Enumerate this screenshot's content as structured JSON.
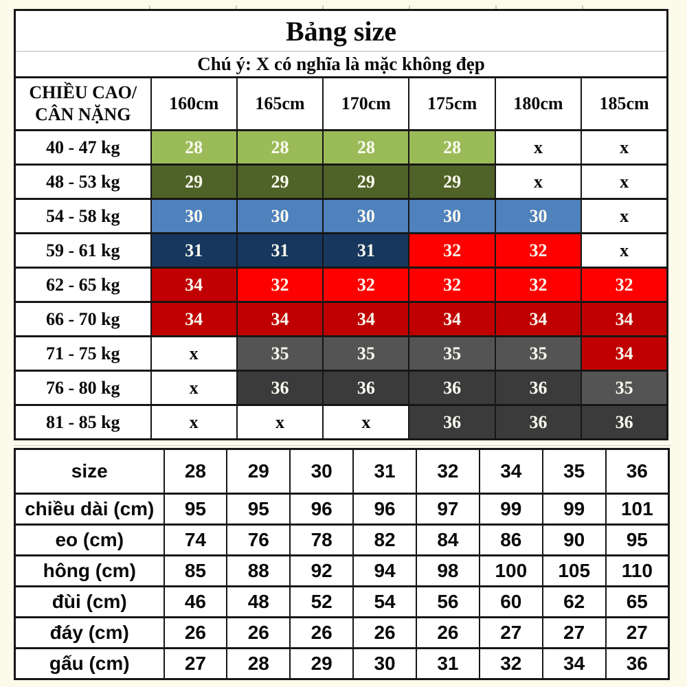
{
  "palette": {
    "page_background": "#FCFAEA",
    "border": "#161616",
    "separator_gray": "#B9B9B9",
    "text_dark": "#0A0A0A",
    "text_on_color": "#FBFAF0",
    "light_green": "#9BBB59",
    "dark_olive": "#4F6228",
    "blue": "#4F81BD",
    "navy": "#17375E",
    "red": "#FE0000",
    "dark_red": "#C00000",
    "gray_medium": "#545454",
    "gray_dark": "#3B3B3B"
  },
  "size_chart": {
    "title": "Bảng size",
    "note": "Chú ý: X có nghĩa là mặc không đẹp",
    "corner_header": {
      "line1": "CHIỀU CAO/",
      "line2": "CÂN NẶNG"
    },
    "height_columns": [
      "160cm",
      "165cm",
      "170cm",
      "175cm",
      "180cm",
      "185cm"
    ],
    "rows": [
      {
        "weight": "40 - 47 kg",
        "cells": [
          {
            "v": "28",
            "bg": "#9BBB59"
          },
          {
            "v": "28",
            "bg": "#9BBB59"
          },
          {
            "v": "28",
            "bg": "#9BBB59"
          },
          {
            "v": "28",
            "bg": "#9BBB59"
          },
          {
            "v": "x",
            "bg": "#FFFFFF"
          },
          {
            "v": "x",
            "bg": "#FFFFFF"
          }
        ]
      },
      {
        "weight": "48 - 53 kg",
        "cells": [
          {
            "v": "29",
            "bg": "#4F6228"
          },
          {
            "v": "29",
            "bg": "#4F6228"
          },
          {
            "v": "29",
            "bg": "#4F6228"
          },
          {
            "v": "29",
            "bg": "#4F6228"
          },
          {
            "v": "x",
            "bg": "#FFFFFF"
          },
          {
            "v": "x",
            "bg": "#FFFFFF"
          }
        ]
      },
      {
        "weight": "54 - 58 kg",
        "cells": [
          {
            "v": "30",
            "bg": "#4F81BD"
          },
          {
            "v": "30",
            "bg": "#4F81BD"
          },
          {
            "v": "30",
            "bg": "#4F81BD"
          },
          {
            "v": "30",
            "bg": "#4F81BD"
          },
          {
            "v": "30",
            "bg": "#4F81BD"
          },
          {
            "v": "x",
            "bg": "#FFFFFF"
          }
        ]
      },
      {
        "weight": "59 - 61 kg",
        "cells": [
          {
            "v": "31",
            "bg": "#17375E"
          },
          {
            "v": "31",
            "bg": "#17375E"
          },
          {
            "v": "31",
            "bg": "#17375E"
          },
          {
            "v": "32",
            "bg": "#FE0000"
          },
          {
            "v": "32",
            "bg": "#FE0000"
          },
          {
            "v": "x",
            "bg": "#FFFFFF"
          }
        ]
      },
      {
        "weight": "62 - 65 kg",
        "cells": [
          {
            "v": "34",
            "bg": "#C00000"
          },
          {
            "v": "32",
            "bg": "#FE0000"
          },
          {
            "v": "32",
            "bg": "#FE0000"
          },
          {
            "v": "32",
            "bg": "#FE0000"
          },
          {
            "v": "32",
            "bg": "#FE0000"
          },
          {
            "v": "32",
            "bg": "#FE0000"
          }
        ]
      },
      {
        "weight": "66 - 70 kg",
        "cells": [
          {
            "v": "34",
            "bg": "#C00000"
          },
          {
            "v": "34",
            "bg": "#C00000"
          },
          {
            "v": "34",
            "bg": "#C00000"
          },
          {
            "v": "34",
            "bg": "#C00000"
          },
          {
            "v": "34",
            "bg": "#C00000"
          },
          {
            "v": "34",
            "bg": "#C00000"
          }
        ]
      },
      {
        "weight": "71 - 75 kg",
        "cells": [
          {
            "v": "x",
            "bg": "#FFFFFF"
          },
          {
            "v": "35",
            "bg": "#545454"
          },
          {
            "v": "35",
            "bg": "#545454"
          },
          {
            "v": "35",
            "bg": "#545454"
          },
          {
            "v": "35",
            "bg": "#545454"
          },
          {
            "v": "34",
            "bg": "#C00000"
          }
        ]
      },
      {
        "weight": "76 - 80 kg",
        "cells": [
          {
            "v": "x",
            "bg": "#FFFFFF"
          },
          {
            "v": "36",
            "bg": "#3B3B3B"
          },
          {
            "v": "36",
            "bg": "#3B3B3B"
          },
          {
            "v": "36",
            "bg": "#3B3B3B"
          },
          {
            "v": "36",
            "bg": "#3B3B3B"
          },
          {
            "v": "35",
            "bg": "#545454"
          }
        ]
      },
      {
        "weight": "81 - 85 kg",
        "cells": [
          {
            "v": "x",
            "bg": "#FFFFFF"
          },
          {
            "v": "x",
            "bg": "#FFFFFF"
          },
          {
            "v": "x",
            "bg": "#FFFFFF"
          },
          {
            "v": "36",
            "bg": "#3B3B3B"
          },
          {
            "v": "36",
            "bg": "#3B3B3B"
          },
          {
            "v": "36",
            "bg": "#3B3B3B"
          }
        ]
      }
    ]
  },
  "measurements": {
    "header_label": "size",
    "sizes": [
      "28",
      "29",
      "30",
      "31",
      "32",
      "34",
      "35",
      "36"
    ],
    "rows": [
      {
        "label": "chiều dài (cm)",
        "values": [
          "95",
          "95",
          "96",
          "96",
          "97",
          "99",
          "99",
          "101"
        ]
      },
      {
        "label": "eo (cm)",
        "values": [
          "74",
          "76",
          "78",
          "82",
          "84",
          "86",
          "90",
          "95"
        ]
      },
      {
        "label": "hông (cm)",
        "values": [
          "85",
          "88",
          "92",
          "94",
          "98",
          "100",
          "105",
          "110"
        ]
      },
      {
        "label": "đùi (cm)",
        "values": [
          "46",
          "48",
          "52",
          "54",
          "56",
          "60",
          "62",
          "65"
        ]
      },
      {
        "label": "đáy (cm)",
        "values": [
          "26",
          "26",
          "26",
          "26",
          "26",
          "27",
          "27",
          "27"
        ]
      },
      {
        "label": "gấu (cm)",
        "values": [
          "27",
          "28",
          "29",
          "30",
          "31",
          "32",
          "34",
          "36"
        ]
      }
    ]
  }
}
